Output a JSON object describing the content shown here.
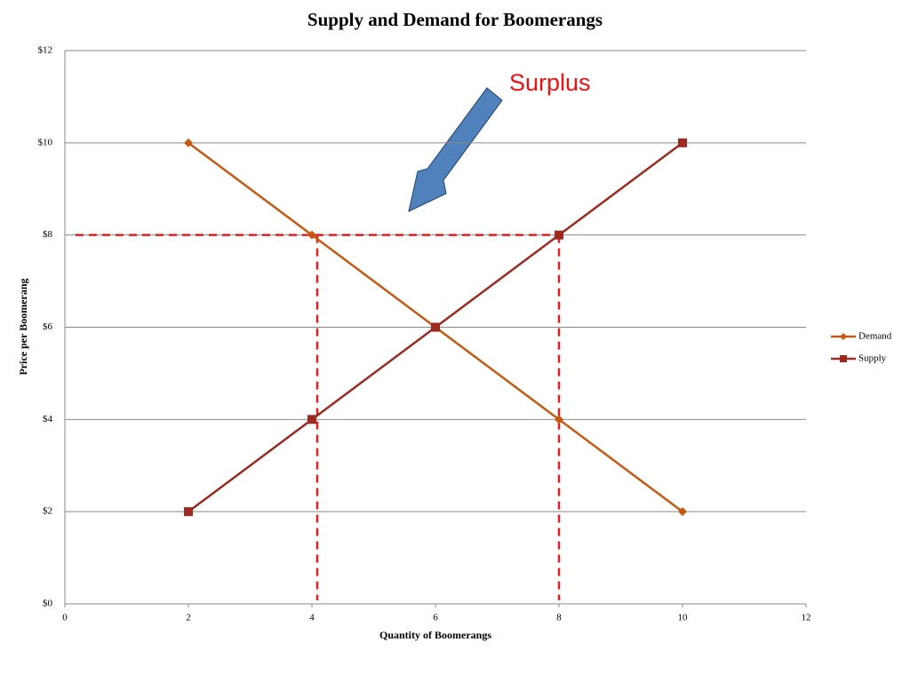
{
  "chart_data": {
    "type": "line",
    "title": "Supply and Demand for Boomerangs",
    "x_label": "Quantity of Boomerangs",
    "y_label": "Price per Boomerang",
    "x": [
      2,
      4,
      6,
      8,
      10
    ],
    "series": [
      {
        "name": "Demand",
        "color": "#c65911",
        "marker": "diamond",
        "values": [
          10,
          8,
          6,
          4,
          2
        ]
      },
      {
        "name": "Supply",
        "color": "#9c2a1f",
        "marker": "square",
        "values": [
          2,
          4,
          6,
          8,
          10
        ]
      }
    ],
    "xlim": [
      0,
      12
    ],
    "xticks": [
      0,
      2,
      4,
      6,
      8,
      10,
      12
    ],
    "ylim": [
      0,
      12
    ],
    "yticks": [
      {
        "value": 0,
        "label": "$0"
      },
      {
        "value": 2,
        "label": "$2"
      },
      {
        "value": 4,
        "label": "$4"
      },
      {
        "value": 6,
        "label": "$6"
      },
      {
        "value": 8,
        "label": "$8"
      },
      {
        "value": 10,
        "label": "$10"
      },
      {
        "value": 12,
        "label": "$12"
      }
    ],
    "grid": true,
    "legend": "right",
    "annotation": "Surplus",
    "guides": {
      "color": "#e02020",
      "price": 8,
      "quantities": [
        4,
        8
      ]
    }
  }
}
